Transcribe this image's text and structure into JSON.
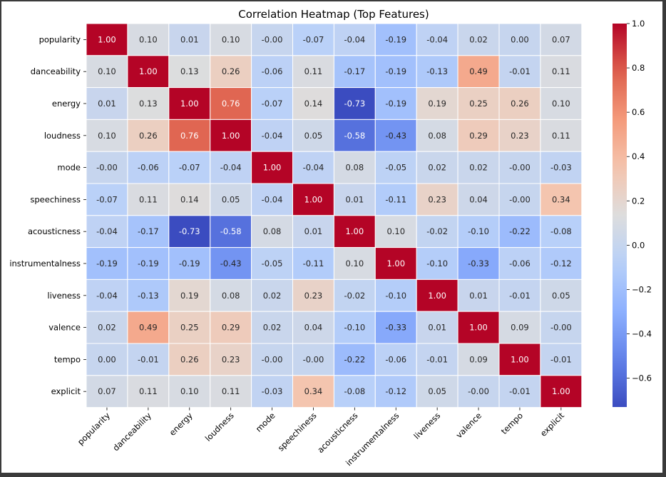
{
  "chart_data": {
    "type": "heatmap",
    "title": "Correlation Heatmap (Top Features)",
    "labels": [
      "popularity",
      "danceability",
      "energy",
      "loudness",
      "mode",
      "speechiness",
      "acousticness",
      "instrumentalness",
      "liveness",
      "valence",
      "tempo",
      "explicit"
    ],
    "values": [
      [
        1.0,
        0.1,
        0.01,
        0.1,
        -0.0,
        -0.07,
        -0.04,
        -0.19,
        -0.04,
        0.02,
        0.0,
        0.07
      ],
      [
        0.1,
        1.0,
        0.13,
        0.26,
        -0.06,
        0.11,
        -0.17,
        -0.19,
        -0.13,
        0.49,
        -0.01,
        0.11
      ],
      [
        0.01,
        0.13,
        1.0,
        0.76,
        -0.07,
        0.14,
        -0.73,
        -0.19,
        0.19,
        0.25,
        0.26,
        0.1
      ],
      [
        0.1,
        0.26,
        0.76,
        1.0,
        -0.04,
        0.05,
        -0.58,
        -0.43,
        0.08,
        0.29,
        0.23,
        0.11
      ],
      [
        -0.0,
        -0.06,
        -0.07,
        -0.04,
        1.0,
        -0.04,
        0.08,
        -0.05,
        0.02,
        0.02,
        -0.0,
        -0.03
      ],
      [
        -0.07,
        0.11,
        0.14,
        0.05,
        -0.04,
        1.0,
        0.01,
        -0.11,
        0.23,
        0.04,
        -0.0,
        0.34
      ],
      [
        -0.04,
        -0.17,
        -0.73,
        -0.58,
        0.08,
        0.01,
        1.0,
        0.1,
        -0.02,
        -0.1,
        -0.22,
        -0.08
      ],
      [
        -0.19,
        -0.19,
        -0.19,
        -0.43,
        -0.05,
        -0.11,
        0.1,
        1.0,
        -0.1,
        -0.33,
        -0.06,
        -0.12
      ],
      [
        -0.04,
        -0.13,
        0.19,
        0.08,
        0.02,
        0.23,
        -0.02,
        -0.1,
        1.0,
        0.01,
        -0.01,
        0.05
      ],
      [
        0.02,
        0.49,
        0.25,
        0.29,
        0.02,
        0.04,
        -0.1,
        -0.33,
        0.01,
        1.0,
        0.09,
        -0.0
      ],
      [
        0.0,
        -0.01,
        0.26,
        0.23,
        -0.0,
        -0.0,
        -0.22,
        -0.06,
        -0.01,
        0.09,
        1.0,
        -0.01
      ],
      [
        0.07,
        0.11,
        0.1,
        0.11,
        -0.03,
        0.34,
        -0.08,
        -0.12,
        0.05,
        -0.0,
        -0.01,
        1.0
      ]
    ],
    "value_format": "0.00",
    "colormap": "coolwarm",
    "vmin": -0.73,
    "vmax": 1.0,
    "colorbar_ticks": [
      "1.0",
      "0.8",
      "0.6",
      "0.4",
      "0.2",
      "0.0",
      "−0.2",
      "−0.4",
      "−0.6"
    ],
    "colorbar_tick_values": [
      1.0,
      0.8,
      0.6,
      0.4,
      0.2,
      0.0,
      -0.2,
      -0.4,
      -0.6
    ],
    "grid": "white cell borders",
    "legend_position": "right colorbar"
  }
}
